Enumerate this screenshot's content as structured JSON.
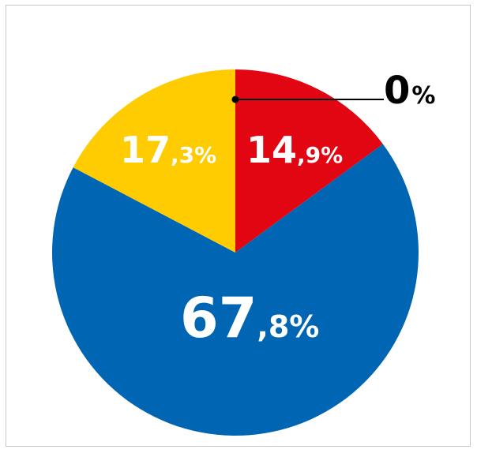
{
  "chart_data": {
    "type": "pie",
    "title": "",
    "slices": [
      {
        "label_int": "0",
        "label_dec": "%",
        "value": 0.0,
        "color": "#000000"
      },
      {
        "label_int": "14",
        "label_dec": ",9%",
        "value": 14.9,
        "color": "#e20613"
      },
      {
        "label_int": "67",
        "label_dec": ",8%",
        "value": 67.8,
        "color": "#0066b3"
      },
      {
        "label_int": "17",
        "label_dec": ",3%",
        "value": 17.3,
        "color": "#fecc00"
      }
    ],
    "start_angle": "12 o'clock",
    "direction": "clockwise"
  }
}
